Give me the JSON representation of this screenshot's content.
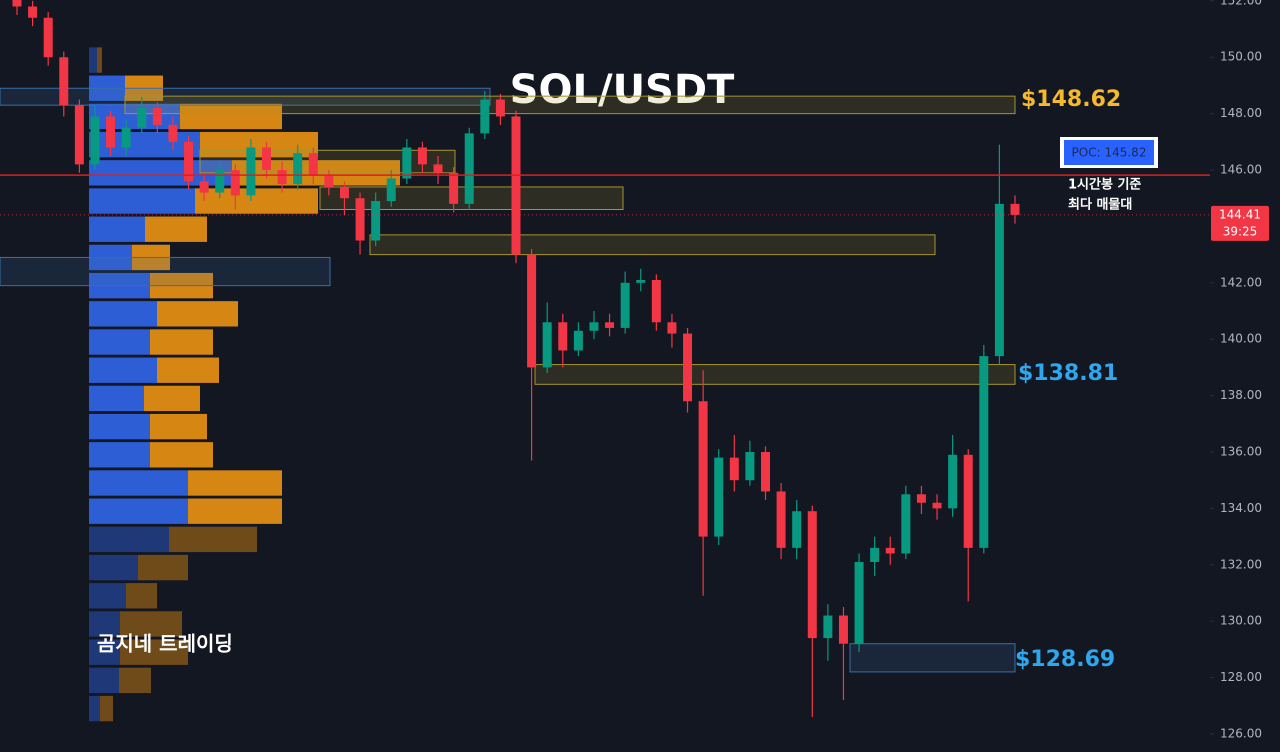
{
  "chart_data": {
    "type": "candlestick",
    "title": "SOL/USDT",
    "ylim": [
      125.36,
      152.03
    ],
    "yticks": [
      {
        "value": 126,
        "label": "126.00"
      },
      {
        "value": 128,
        "label": "128.00"
      },
      {
        "value": 130,
        "label": "130.00"
      },
      {
        "value": 132,
        "label": "132.00"
      },
      {
        "value": 134,
        "label": "134.00"
      },
      {
        "value": 136,
        "label": "136.00"
      },
      {
        "value": 138,
        "label": "138.00"
      },
      {
        "value": 140,
        "label": "140.00"
      },
      {
        "value": 142,
        "label": "142.00"
      },
      {
        "value": 146,
        "label": "146.00"
      },
      {
        "value": 148,
        "label": "148.00"
      },
      {
        "value": 150,
        "label": "150.00"
      },
      {
        "value": 152,
        "label": "152.00"
      }
    ],
    "up_color": "#089981",
    "down_color": "#f23645",
    "open": [
      152.3,
      151.8,
      151.4,
      150.0,
      148.3,
      146.2,
      147.9,
      146.8,
      147.5,
      148.2,
      147.6,
      147.0,
      145.6,
      145.2,
      146.0,
      145.1,
      146.8,
      146.0,
      145.5,
      146.6,
      145.8,
      145.4,
      145.0,
      143.5,
      144.9,
      145.7,
      146.8,
      146.2,
      145.9,
      144.8,
      147.3,
      148.5,
      147.9,
      143.0,
      139.0,
      140.6,
      139.6,
      140.3,
      140.6,
      140.4,
      142.0,
      142.1,
      140.6,
      140.2,
      137.8,
      133.0,
      135.8,
      135.0,
      136.0,
      134.6,
      132.6,
      133.9,
      129.4,
      130.2,
      129.2,
      132.1,
      132.6,
      132.4,
      134.5,
      134.2,
      134.0,
      135.9,
      132.6,
      139.4,
      144.8
    ],
    "high": [
      152.6,
      152.0,
      151.6,
      150.2,
      148.5,
      148.3,
      148.1,
      147.8,
      148.6,
      148.4,
      147.9,
      147.2,
      145.9,
      146.3,
      146.2,
      147.1,
      147.0,
      146.3,
      146.9,
      146.8,
      146.0,
      145.6,
      145.2,
      145.2,
      146.0,
      147.1,
      147.0,
      146.5,
      146.1,
      147.5,
      148.8,
      148.7,
      148.1,
      143.2,
      141.3,
      140.9,
      140.6,
      141.0,
      140.9,
      142.4,
      142.5,
      142.3,
      140.9,
      140.4,
      138.9,
      136.1,
      136.6,
      136.4,
      136.2,
      134.9,
      134.3,
      134.1,
      130.6,
      130.5,
      132.4,
      133.0,
      133.0,
      134.8,
      134.8,
      134.5,
      136.6,
      136.1,
      139.8,
      146.9,
      145.1
    ],
    "low": [
      151.5,
      151.1,
      149.7,
      147.9,
      145.9,
      146.0,
      146.5,
      146.5,
      147.3,
      147.3,
      146.7,
      145.3,
      144.9,
      145.0,
      144.6,
      144.9,
      145.7,
      145.2,
      145.3,
      145.5,
      145.1,
      144.4,
      143.0,
      143.3,
      144.7,
      145.5,
      145.9,
      145.5,
      144.5,
      144.6,
      147.1,
      147.6,
      142.7,
      135.7,
      138.8,
      139.0,
      139.4,
      140.0,
      140.1,
      140.2,
      141.7,
      140.3,
      139.7,
      137.4,
      130.9,
      132.7,
      134.6,
      134.8,
      134.3,
      132.2,
      132.2,
      126.6,
      128.6,
      127.2,
      128.9,
      131.6,
      132.0,
      132.2,
      133.8,
      133.6,
      133.7,
      130.7,
      132.4,
      139.1,
      144.1
    ],
    "close": [
      151.8,
      151.4,
      150.0,
      148.3,
      146.2,
      147.9,
      146.8,
      147.5,
      148.2,
      147.6,
      147.0,
      145.6,
      145.2,
      146.0,
      145.1,
      146.8,
      146.0,
      145.5,
      146.6,
      145.8,
      145.4,
      145.0,
      143.5,
      144.9,
      145.7,
      146.8,
      146.2,
      145.9,
      144.8,
      147.3,
      148.5,
      147.9,
      143.0,
      139.0,
      140.6,
      139.6,
      140.3,
      140.6,
      140.4,
      142.0,
      142.1,
      140.6,
      140.2,
      137.8,
      133.0,
      135.8,
      135.0,
      136.0,
      134.6,
      132.6,
      133.9,
      129.4,
      130.2,
      129.2,
      132.1,
      132.6,
      132.4,
      134.5,
      134.2,
      134.0,
      135.9,
      132.6,
      139.4,
      144.8,
      144.41
    ],
    "volume_profile": {
      "prices": [
        149.9,
        148.9,
        147.9,
        146.9,
        145.9,
        144.9,
        143.9,
        142.9,
        141.9,
        140.9,
        139.9,
        138.9,
        137.9,
        136.9,
        135.9,
        134.9,
        133.9,
        132.9,
        131.9,
        130.9,
        129.9,
        128.9,
        127.9,
        126.9
      ],
      "buy": [
        8,
        36,
        91,
        111,
        143,
        106,
        56,
        43,
        61,
        68,
        61,
        68,
        55,
        61,
        61,
        99,
        99,
        80,
        49,
        37,
        31,
        31,
        30,
        11
      ],
      "sell": [
        5,
        38,
        102,
        118,
        168,
        123,
        62,
        38,
        63,
        81,
        63,
        62,
        56,
        57,
        63,
        94,
        94,
        88,
        50,
        31,
        62,
        68,
        32,
        13
      ],
      "value_area": [
        133.4,
        149.4
      ],
      "buy_color": "#2f62e0",
      "sell_color": "#e08c12"
    },
    "zones": [
      {
        "top": 148.9,
        "bottom": 148.3,
        "color": "#3b6ea8"
      },
      {
        "top": 148.62,
        "bottom": 148.0,
        "color": "#a89430"
      },
      {
        "top": 146.7,
        "bottom": 145.9,
        "color": "#a89430"
      },
      {
        "top": 145.4,
        "bottom": 144.6,
        "color": "#a89430"
      },
      {
        "top": 142.9,
        "bottom": 141.9,
        "color": "#3b6ea8"
      },
      {
        "top": 143.7,
        "bottom": 143.0,
        "color": "#a89430"
      },
      {
        "top": 139.1,
        "bottom": 138.4,
        "color": "#a89430"
      },
      {
        "top": 129.2,
        "bottom": 128.2,
        "color": "#3b6ea8"
      }
    ],
    "poc": {
      "value": 145.82,
      "label": "POC: 145.82",
      "color": "#e01e1e"
    },
    "last_price": {
      "value": 144.41,
      "label": "144.41",
      "countdown": "39:25",
      "color": "#f23645"
    },
    "annotations": [
      "$148.62",
      "$138.81",
      "$128.69",
      "1시간봉 기준",
      "최다 매물대",
      "곰지네 트레이딩"
    ]
  }
}
